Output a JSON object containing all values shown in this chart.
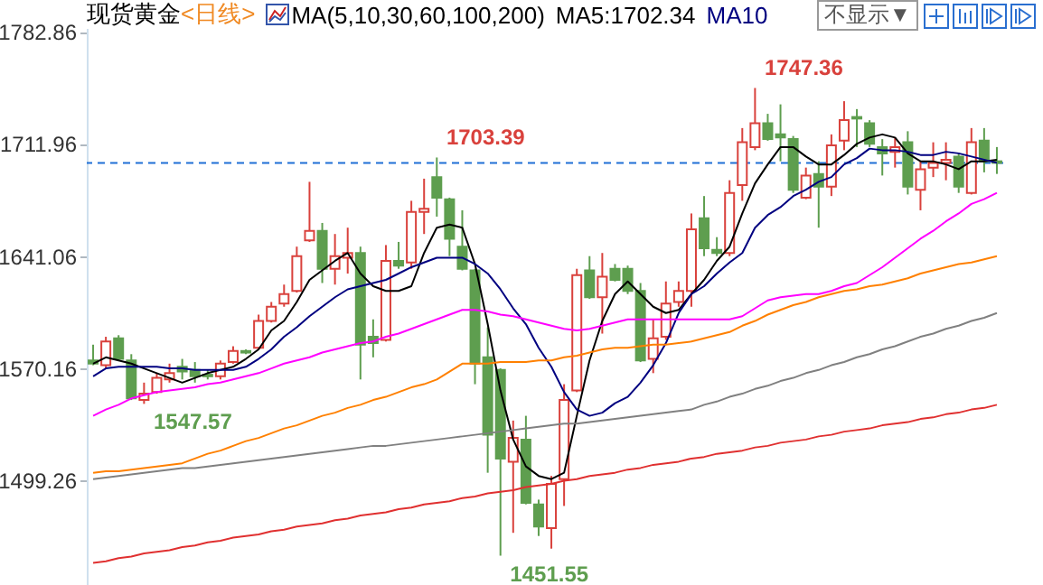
{
  "chart_data": {
    "type": "candlestick",
    "title": "现货黄金",
    "subtitle": "<日线>",
    "annotations": [
      "MA(5,10,30,60,100,200)",
      "MA5:1702.34",
      "MA10",
      "不显示▼",
      "1747.36",
      {
        "text": "1703.39",
        "y": 1703.39
      },
      "1547.57",
      {
        "text": "1451.55",
        "y": 1451.55
      }
    ],
    "categories": [
      null,
      null,
      null,
      null,
      null,
      null,
      null,
      null,
      null,
      null,
      null,
      null,
      null,
      null,
      null,
      null,
      null,
      null,
      null,
      null,
      null,
      null,
      null,
      null,
      null,
      null,
      null,
      null,
      null,
      null,
      null,
      null,
      null,
      null,
      null,
      null,
      null,
      null,
      null,
      null,
      null,
      null,
      null,
      null,
      null,
      null,
      null,
      null,
      null,
      null,
      null,
      null,
      null,
      null,
      null,
      null,
      null,
      null,
      null,
      null,
      null,
      null,
      null,
      null,
      null,
      null,
      null,
      null,
      null,
      null,
      null,
      null
    ],
    "ohlc": [
      [
        1575,
        1585,
        1572,
        1573
      ],
      [
        1572,
        1590,
        1570,
        1587
      ],
      [
        1589,
        1591,
        1575,
        1576
      ],
      [
        1575,
        1579,
        1550,
        1551
      ],
      [
        1550,
        1561,
        1547.57,
        1554
      ],
      [
        1555,
        1567,
        1554,
        1564
      ],
      [
        1563,
        1573,
        1561,
        1567
      ],
      [
        1571,
        1576,
        1563,
        1568
      ],
      [
        1569,
        1574,
        1561,
        1565
      ],
      [
        1566,
        1569,
        1563,
        1565
      ],
      [
        1565,
        1575,
        1563,
        1573
      ],
      [
        1574,
        1584,
        1573,
        1581
      ],
      [
        1581,
        1582,
        1579,
        1580
      ],
      [
        1583,
        1604,
        1582,
        1600
      ],
      [
        1600,
        1612,
        1599,
        1609
      ],
      [
        1611,
        1623,
        1609,
        1617
      ],
      [
        1619,
        1647,
        1618,
        1641
      ],
      [
        1651,
        1688,
        1650,
        1657
      ],
      [
        1657,
        1662,
        1624,
        1633
      ],
      [
        1633,
        1655,
        1623,
        1641
      ],
      [
        1640,
        1659,
        1630,
        1643
      ],
      [
        1643,
        1647,
        1563,
        1585
      ],
      [
        1590,
        1601,
        1577,
        1586
      ],
      [
        1588,
        1648,
        1587,
        1638
      ],
      [
        1638,
        1650,
        1633,
        1635
      ],
      [
        1637,
        1676,
        1633,
        1669
      ],
      [
        1669,
        1690,
        1655,
        1671
      ],
      [
        1691,
        1703.39,
        1666,
        1678
      ],
      [
        1677,
        1678,
        1641,
        1652
      ],
      [
        1647,
        1670,
        1632,
        1633
      ],
      [
        1632,
        1633,
        1560,
        1573
      ],
      [
        1577,
        1596,
        1504,
        1528
      ],
      [
        1569,
        1570,
        1451.55,
        1513
      ],
      [
        1511,
        1537,
        1466,
        1526
      ],
      [
        1525,
        1540,
        1484,
        1485
      ],
      [
        1484,
        1487,
        1464,
        1470
      ],
      [
        1469,
        1502,
        1456,
        1497
      ],
      [
        1500,
        1560,
        1483,
        1550
      ],
      [
        1556,
        1633,
        1555,
        1629
      ],
      [
        1632,
        1641,
        1614,
        1615
      ],
      [
        1615,
        1643,
        1592,
        1628
      ],
      [
        1633,
        1636,
        1625,
        1626
      ],
      [
        1633,
        1635,
        1617,
        1619
      ],
      [
        1619,
        1624,
        1574,
        1575
      ],
      [
        1576,
        1601,
        1567,
        1589
      ],
      [
        1590,
        1625,
        1588,
        1611
      ],
      [
        1612,
        1625,
        1609,
        1619
      ],
      [
        1619,
        1668,
        1609,
        1658
      ],
      [
        1665,
        1679,
        1641,
        1646
      ],
      [
        1645,
        1653,
        1641,
        1643
      ],
      [
        1643,
        1689,
        1641,
        1681
      ],
      [
        1686,
        1722,
        1676,
        1713
      ],
      [
        1710,
        1747.36,
        1708,
        1725
      ],
      [
        1725,
        1731,
        1714,
        1715
      ],
      [
        1718,
        1737,
        1701,
        1716
      ],
      [
        1715,
        1717,
        1681,
        1683
      ],
      [
        1678,
        1697,
        1677,
        1692
      ],
      [
        1693,
        1701,
        1659,
        1685
      ],
      [
        1685,
        1718,
        1679,
        1711
      ],
      [
        1714,
        1739,
        1708,
        1727
      ],
      [
        1729,
        1734,
        1710,
        1728
      ],
      [
        1725,
        1727,
        1710,
        1712
      ],
      [
        1710,
        1715,
        1692,
        1706
      ],
      [
        1707,
        1716,
        1697,
        1710
      ],
      [
        1713,
        1720,
        1680,
        1685
      ],
      [
        1683,
        1701,
        1670,
        1696
      ],
      [
        1697,
        1713,
        1691,
        1700
      ],
      [
        1700,
        1713,
        1689,
        1702
      ],
      [
        1704,
        1706,
        1681,
        1685
      ],
      [
        1681,
        1722,
        1680,
        1713
      ],
      [
        1714,
        1722,
        1694,
        1701
      ],
      [
        1701,
        1710,
        1693,
        1700
      ]
    ],
    "colors": [
      "#5e9e4f",
      "#d9413c",
      "#5e9e4f",
      "#5e9e4f",
      "#d9413c",
      "#d9413c",
      "#d9413c",
      "#5e9e4f",
      "#5e9e4f",
      "#5e9e4f",
      "#d9413c",
      "#d9413c",
      "#5e9e4f",
      "#d9413c",
      "#d9413c",
      "#d9413c",
      "#d9413c",
      "#d9413c",
      "#5e9e4f",
      "#d9413c",
      "#d9413c",
      "#5e9e4f",
      "#5e9e4f",
      "#d9413c",
      "#5e9e4f",
      "#d9413c",
      "#d9413c",
      "#5e9e4f",
      "#5e9e4f",
      "#5e9e4f",
      "#5e9e4f",
      "#5e9e4f",
      "#5e9e4f",
      "#d9413c",
      "#5e9e4f",
      "#5e9e4f",
      "#d9413c",
      "#d9413c",
      "#d9413c",
      "#5e9e4f",
      "#d9413c",
      "#5e9e4f",
      "#5e9e4f",
      "#5e9e4f",
      "#d9413c",
      "#d9413c",
      "#d9413c",
      "#d9413c",
      "#5e9e4f",
      "#5e9e4f",
      "#d9413c",
      "#d9413c",
      "#d9413c",
      "#5e9e4f",
      "#5e9e4f",
      "#5e9e4f",
      "#d9413c",
      "#5e9e4f",
      "#d9413c",
      "#d9413c",
      "#5e9e4f",
      "#5e9e4f",
      "#5e9e4f",
      "#d9413c",
      "#5e9e4f",
      "#d9413c",
      "#d9413c",
      "#d9413c",
      "#5e9e4f",
      "#d9413c",
      "#5e9e4f",
      "#5e9e4f"
    ],
    "series": [
      {
        "type": "line",
        "color": "#000000",
        "values": [
          1573,
          1577,
          1575,
          1573,
          1570,
          1567,
          1564,
          1561,
          1564,
          1567,
          1569,
          1571,
          1576,
          1582,
          1594,
          1600,
          1612,
          1626,
          1632,
          1638,
          1643,
          1630,
          1622,
          1619,
          1619,
          1622,
          1643,
          1659,
          1661,
          1659,
          1636,
          1598,
          1556,
          1525,
          1508,
          1502,
          1500,
          1504,
          1540,
          1575,
          1600,
          1617,
          1625,
          1617,
          1609,
          1605,
          1607,
          1617,
          1626,
          1638,
          1647,
          1668,
          1687,
          1699,
          1710,
          1710,
          1704,
          1699,
          1699,
          1705,
          1712,
          1716,
          1718,
          1716,
          1706,
          1701,
          1701,
          1699,
          1696,
          1701,
          1701,
          1702
        ]
      },
      {
        "type": "line",
        "color": "#000080",
        "values": [
          1565,
          1570,
          1571,
          1571,
          1571,
          1571,
          1570,
          1570,
          1569,
          1569,
          1569,
          1569,
          1571,
          1576,
          1582,
          1590,
          1596,
          1603,
          1609,
          1615,
          1620,
          1622,
          1624,
          1626,
          1630,
          1634,
          1637,
          1640,
          1640,
          1640,
          1636,
          1630,
          1620,
          1608,
          1598,
          1583,
          1571,
          1555,
          1544,
          1540,
          1542,
          1548,
          1552,
          1561,
          1572,
          1586,
          1605,
          1617,
          1622,
          1630,
          1637,
          1643,
          1659,
          1667,
          1672,
          1679,
          1683,
          1688,
          1691,
          1699,
          1703,
          1709,
          1708,
          1708,
          1707,
          1705,
          1705,
          1707,
          1706,
          1704,
          1702,
          1700
        ]
      },
      {
        "type": "line",
        "color": "#ff00ff",
        "values": [
          1540,
          1544,
          1547,
          1551,
          1553,
          1555,
          1556,
          1557,
          1558,
          1560,
          1561,
          1563,
          1565,
          1567,
          1570,
          1573,
          1575,
          1577,
          1580,
          1582,
          1584,
          1586,
          1587,
          1590,
          1592,
          1595,
          1598,
          1601,
          1604,
          1607,
          1607,
          1606,
          1604,
          1603,
          1601,
          1599,
          1597,
          1595,
          1594,
          1595,
          1597,
          1599,
          1601,
          1601,
          1601,
          1601,
          1601,
          1601,
          1601,
          1601,
          1601,
          1603,
          1608,
          1613,
          1615,
          1616,
          1617,
          1617,
          1619,
          1622,
          1624,
          1629,
          1634,
          1640,
          1646,
          1652,
          1657,
          1663,
          1668,
          1674,
          1677,
          1681
        ]
      },
      {
        "type": "line",
        "color": "#ff8000",
        "values": [
          1504,
          1505,
          1505,
          1506,
          1507,
          1508,
          1509,
          1510,
          1513,
          1516,
          1518,
          1521,
          1524,
          1526,
          1529,
          1532,
          1534,
          1537,
          1540,
          1542,
          1545,
          1547,
          1550,
          1552,
          1555,
          1558,
          1560,
          1563,
          1568,
          1573,
          1573,
          1573,
          1574,
          1574,
          1574,
          1575,
          1575,
          1577,
          1578,
          1580,
          1582,
          1583,
          1583,
          1584,
          1585,
          1585,
          1586,
          1587,
          1589,
          1591,
          1593,
          1597,
          1600,
          1604,
          1607,
          1610,
          1612,
          1615,
          1617,
          1619,
          1620,
          1622,
          1623,
          1625,
          1627,
          1630,
          1632,
          1634,
          1636,
          1637,
          1639,
          1641
        ]
      },
      {
        "type": "line",
        "color": "#808080",
        "values": [
          1500,
          1501,
          1502,
          1503,
          1504,
          1505,
          1506,
          1507,
          1507,
          1508,
          1509,
          1510,
          1511,
          1512,
          1513,
          1514,
          1515,
          1516,
          1517,
          1518,
          1519,
          1520,
          1521,
          1521,
          1522,
          1523,
          1524,
          1525,
          1526,
          1527,
          1528,
          1529,
          1530,
          1531,
          1532,
          1533,
          1534,
          1535,
          1535,
          1536,
          1537,
          1538,
          1539,
          1540,
          1541,
          1542,
          1543,
          1544,
          1547,
          1549,
          1552,
          1554,
          1557,
          1559,
          1562,
          1564,
          1567,
          1569,
          1572,
          1574,
          1577,
          1579,
          1582,
          1584,
          1587,
          1590,
          1592,
          1595,
          1597,
          1600,
          1602,
          1605
        ]
      },
      {
        "type": "line",
        "color": "#e03030",
        "values": [
          1447,
          1448,
          1450,
          1451,
          1453,
          1454,
          1455,
          1457,
          1458,
          1460,
          1461,
          1463,
          1464,
          1465,
          1467,
          1468,
          1470,
          1471,
          1472,
          1474,
          1475,
          1477,
          1478,
          1479,
          1481,
          1482,
          1484,
          1485,
          1486,
          1488,
          1489,
          1491,
          1492,
          1493,
          1495,
          1496,
          1497,
          1499,
          1500,
          1502,
          1503,
          1504,
          1506,
          1507,
          1509,
          1510,
          1511,
          1513,
          1514,
          1516,
          1517,
          1518,
          1520,
          1521,
          1523,
          1524,
          1525,
          1527,
          1528,
          1530,
          1531,
          1532,
          1534,
          1535,
          1536,
          1538,
          1539,
          1541,
          1542,
          1544,
          1545,
          1547
        ]
      }
    ],
    "ylim": [
      1433,
      1803
    ],
    "yticks": [
      1782.86,
      1711.96,
      1641.06,
      1570.16,
      1499.26
    ],
    "ref_lines": [
      {
        "axis": "y",
        "value": 1700,
        "color": "#1f6fd6",
        "line_style": "dashed"
      }
    ],
    "tick_labels": "y"
  }
}
